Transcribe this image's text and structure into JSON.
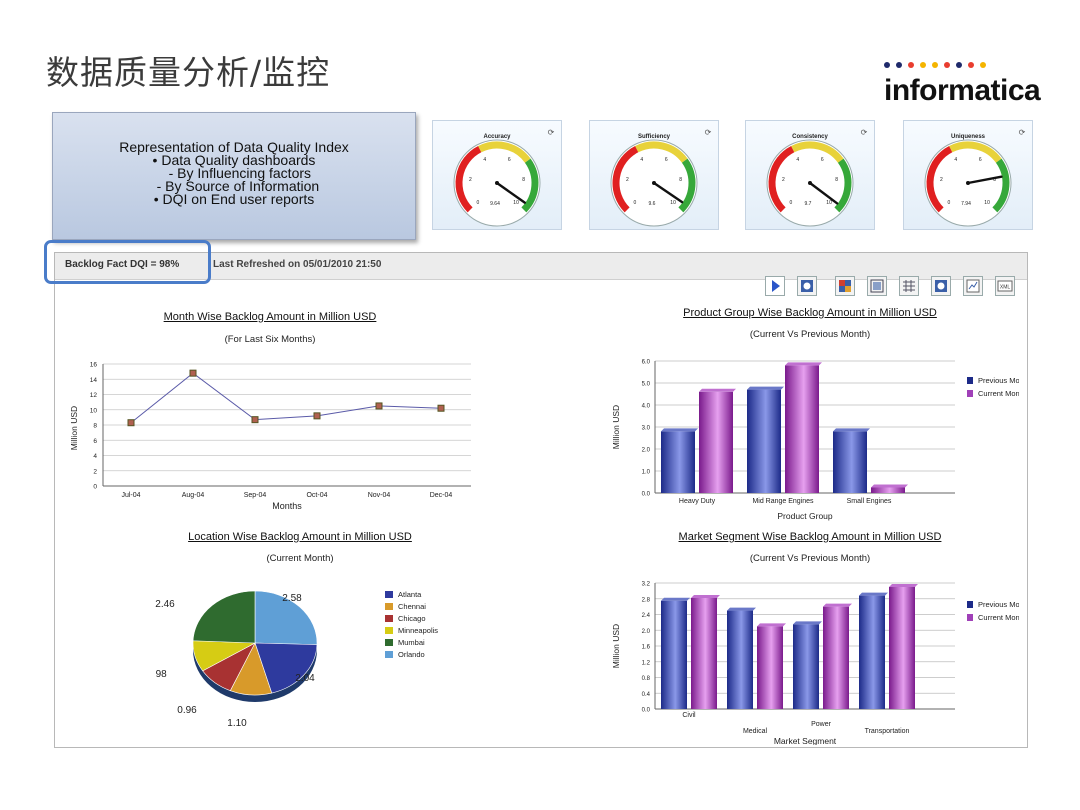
{
  "slide_title": "数据质量分析/监控",
  "logo": {
    "text": "informatica",
    "dot_colors": [
      "#1f2a6b",
      "#1f2a6b",
      "#e93d2f",
      "#f4b400",
      "#f4b400",
      "#e93d2f",
      "#1f2a6b",
      "#e93d2f",
      "#f4b400"
    ]
  },
  "info_box": {
    "lines": [
      "Representation of Data Quality Index",
      "• Data Quality dashboards",
      "   - By Influencing factors",
      "  - By Source of Information",
      "• DQI on End user reports"
    ]
  },
  "gauges": [
    {
      "title": "Accuracy",
      "value_label": "9.64",
      "value": 9.64
    },
    {
      "title": "Sufficiency",
      "value_label": "9.6",
      "value": 9.6
    },
    {
      "title": "Consistency",
      "value_label": "9.7",
      "value": 9.7
    },
    {
      "title": "Uniqueness",
      "value_label": "7.94",
      "value": 7.94
    }
  ],
  "gauge_scale": [
    "0",
    "2",
    "4",
    "6",
    "8",
    "10"
  ],
  "panel": {
    "dqi_label": "Backlog Fact DQI = 98%",
    "refreshed": "Last Refreshed on 05/01/2010  21:50",
    "toolbar": [
      "play",
      "refresh",
      "chart",
      "grid",
      "table",
      "info",
      "export",
      "xml"
    ],
    "xml_label": "XML"
  },
  "chart_data": [
    {
      "type": "line",
      "title": "Month Wise Backlog Amount  in Million USD",
      "subtitle": "(For Last Six Months)",
      "xlabel": "Months",
      "ylabel": "Million USD",
      "categories": [
        "Jul-04",
        "Aug-04",
        "Sep-04",
        "Oct-04",
        "Nov-04",
        "Dec-04"
      ],
      "values": [
        8.3,
        14.8,
        8.7,
        9.2,
        10.5,
        10.2
      ],
      "ylim": [
        0,
        16
      ],
      "yticks": [
        0,
        2,
        4,
        6,
        8,
        10,
        12,
        14,
        16
      ],
      "grid": true
    },
    {
      "type": "bar",
      "title": "Product Group Wise Backlog Amount in Million USD",
      "subtitle": "(Current Vs Previous Month)",
      "xlabel": "Product Group",
      "ylabel": "Million USD",
      "categories": [
        "Heavy Duty",
        "Mid Range Engines",
        "Small Engines"
      ],
      "series": [
        {
          "name": "Previous Month",
          "values": [
            2.8,
            4.7,
            2.8
          ]
        },
        {
          "name": "Current Month",
          "values": [
            4.6,
            5.8,
            0.25
          ]
        }
      ],
      "ylim": [
        0,
        6.0
      ],
      "yticks": [
        "0.0",
        "1.0",
        "2.0",
        "3.0",
        "4.0",
        "5.0",
        "6.0"
      ],
      "legend": "right",
      "grid": true
    },
    {
      "type": "pie",
      "title": "Location Wise Backlog Amount in Million USD",
      "subtitle": "(Current Month)",
      "labels": [
        "Atlanta",
        "Chennai",
        "Chicago",
        "Minneapolis",
        "Mumbai",
        "Orlando"
      ],
      "values": [
        2.04,
        1.1,
        0.96,
        0.98,
        2.46,
        2.58
      ],
      "value_labels": [
        "2.04",
        "1.10",
        "0.96",
        "0.98",
        "2.46",
        "2.58"
      ],
      "colors": [
        "#2e3a9e",
        "#d89a2a",
        "#a83232",
        "#d6cc14",
        "#2f6b2f",
        "#5f9fd6"
      ],
      "legend": "right"
    },
    {
      "type": "bar",
      "title": "Market Segment Wise Backlog Amount in Million USD",
      "subtitle": "(Current Vs Previous Month)",
      "xlabel": "Market Segment",
      "ylabel": "Million USD",
      "categories": [
        "Civil",
        "Medical",
        "Power",
        "Transportation"
      ],
      "series": [
        {
          "name": "Previous Month",
          "values": [
            2.75,
            2.5,
            2.15,
            2.88
          ]
        },
        {
          "name": "Current Month",
          "values": [
            2.82,
            2.1,
            2.6,
            3.1
          ]
        }
      ],
      "ylim": [
        0,
        3.2
      ],
      "yticks": [
        "0.0",
        "0.4",
        "0.8",
        "1.2",
        "1.6",
        "2.0",
        "2.4",
        "2.8",
        "3.2"
      ],
      "legend": "right",
      "grid": true
    }
  ]
}
